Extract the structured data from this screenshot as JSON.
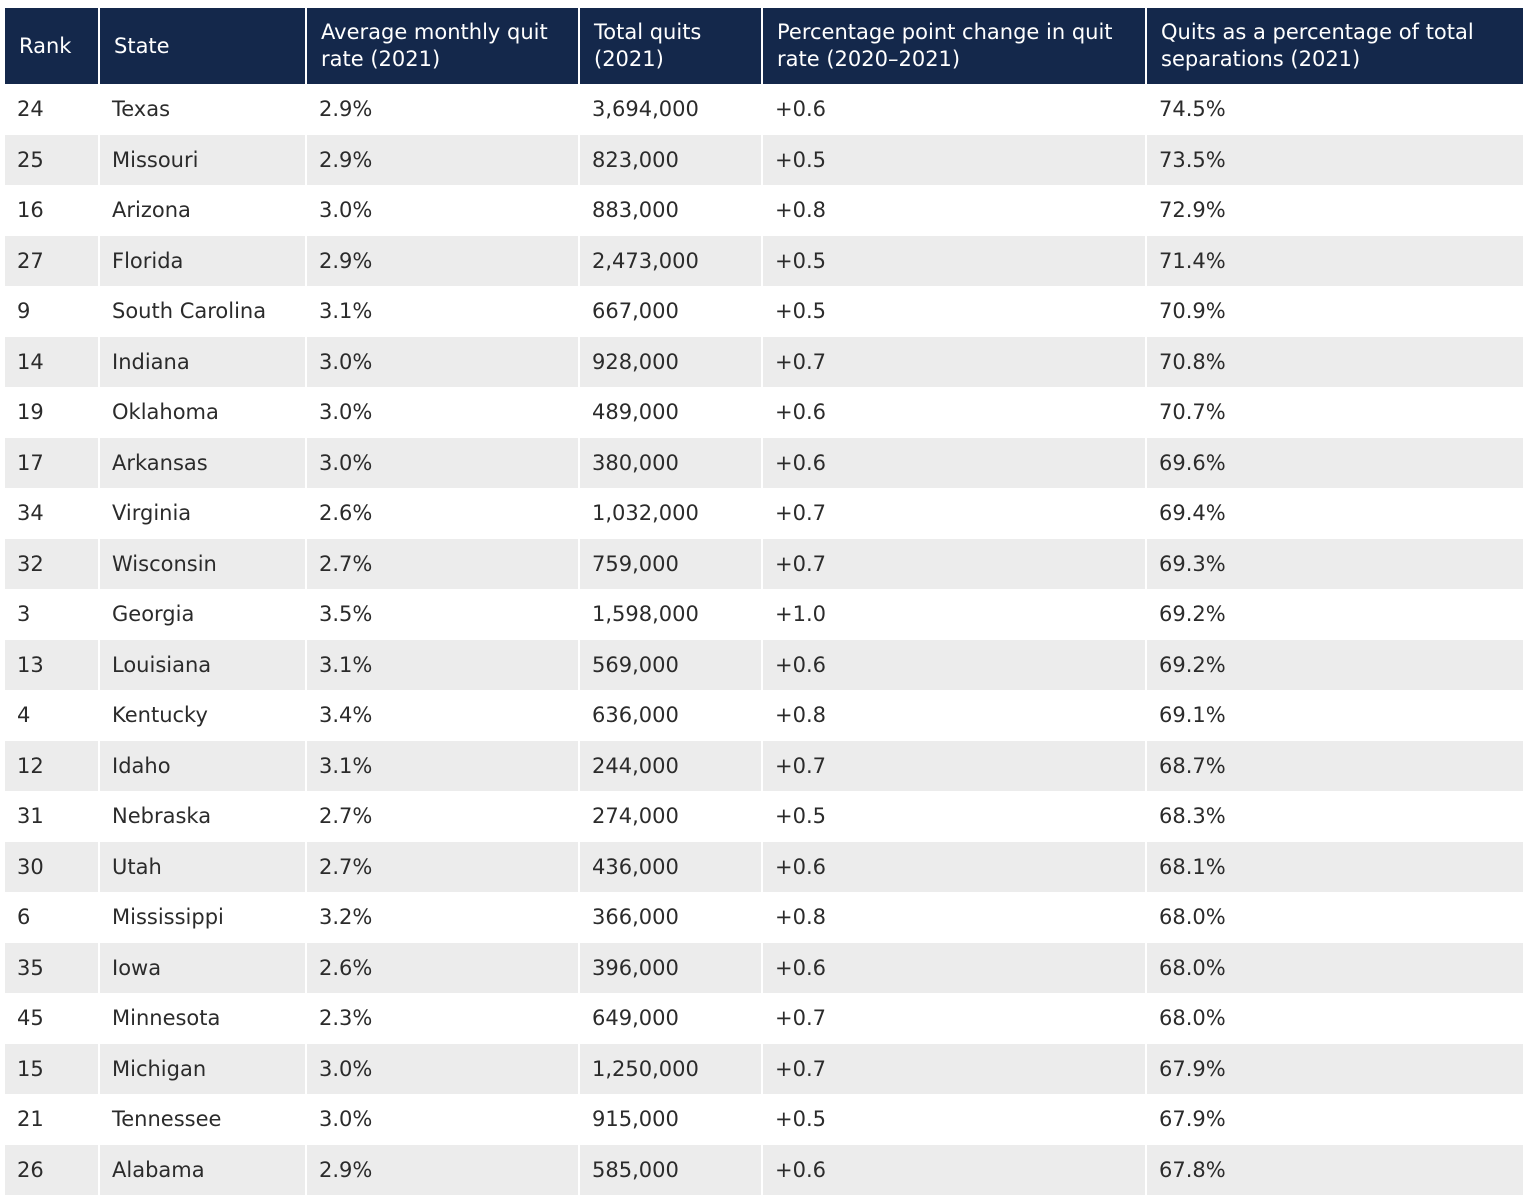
{
  "table": {
    "headers": [
      "Rank",
      "State",
      "Average monthly quit rate (2021)",
      "Total quits (2021)",
      "Percentage point change in quit rate (2020–2021)",
      "Quits as a percentage of total separations (2021)"
    ],
    "rows": [
      [
        "24",
        "Texas",
        "2.9%",
        "3,694,000",
        "+0.6",
        "74.5%"
      ],
      [
        "25",
        "Missouri",
        "2.9%",
        "823,000",
        "+0.5",
        "73.5%"
      ],
      [
        "16",
        "Arizona",
        "3.0%",
        "883,000",
        "+0.8",
        "72.9%"
      ],
      [
        "27",
        "Florida",
        "2.9%",
        "2,473,000",
        "+0.5",
        "71.4%"
      ],
      [
        "9",
        "South Carolina",
        "3.1%",
        "667,000",
        "+0.5",
        "70.9%"
      ],
      [
        "14",
        "Indiana",
        "3.0%",
        "928,000",
        "+0.7",
        "70.8%"
      ],
      [
        "19",
        "Oklahoma",
        "3.0%",
        "489,000",
        "+0.6",
        "70.7%"
      ],
      [
        "17",
        "Arkansas",
        "3.0%",
        "380,000",
        "+0.6",
        "69.6%"
      ],
      [
        "34",
        "Virginia",
        "2.6%",
        "1,032,000",
        "+0.7",
        "69.4%"
      ],
      [
        "32",
        "Wisconsin",
        "2.7%",
        "759,000",
        "+0.7",
        "69.3%"
      ],
      [
        "3",
        "Georgia",
        "3.5%",
        "1,598,000",
        "+1.0",
        "69.2%"
      ],
      [
        "13",
        "Louisiana",
        "3.1%",
        "569,000",
        "+0.6",
        "69.2%"
      ],
      [
        "4",
        "Kentucky",
        "3.4%",
        "636,000",
        "+0.8",
        "69.1%"
      ],
      [
        "12",
        "Idaho",
        "3.1%",
        "244,000",
        "+0.7",
        "68.7%"
      ],
      [
        "31",
        "Nebraska",
        "2.7%",
        "274,000",
        "+0.5",
        "68.3%"
      ],
      [
        "30",
        "Utah",
        "2.7%",
        "436,000",
        "+0.6",
        "68.1%"
      ],
      [
        "6",
        "Mississippi",
        "3.2%",
        "366,000",
        "+0.8",
        "68.0%"
      ],
      [
        "35",
        "Iowa",
        "2.6%",
        "396,000",
        "+0.6",
        "68.0%"
      ],
      [
        "45",
        "Minnesota",
        "2.3%",
        "649,000",
        "+0.7",
        "68.0%"
      ],
      [
        "15",
        "Michigan",
        "3.0%",
        "1,250,000",
        "+0.7",
        "67.9%"
      ],
      [
        "21",
        "Tennessee",
        "3.0%",
        "915,000",
        "+0.5",
        "67.9%"
      ],
      [
        "26",
        "Alabama",
        "2.9%",
        "585,000",
        "+0.6",
        "67.8%"
      ]
    ]
  },
  "colors": {
    "header_bg": "#14284b",
    "header_text": "#ffffff",
    "row_alt_bg": "#ececec",
    "cell_text": "#2b2b2b"
  }
}
